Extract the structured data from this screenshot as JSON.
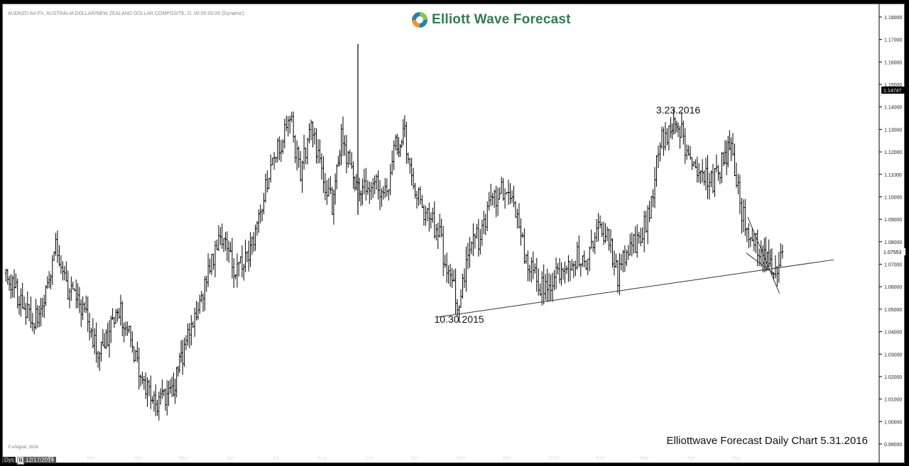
{
  "header": {
    "symbol_line": "AUDNZD A0-FX, AUSTRALIA DOLLAR/NEW ZEALAND DOLLAR COMPOSITE, D, 00:00-00:00 (Dynamic)",
    "brand": "Elliott Wave Forecast",
    "copyright": "© eSignal, 2016"
  },
  "footer": {
    "caption": "Elliottwave Forecast Daily Chart 5.31.2016",
    "interval_button": "Dys",
    "interval_n": "N",
    "cursor_date": "12/17/2014"
  },
  "colors": {
    "brand_green": "#2e7d4f",
    "bars": "#000000",
    "background": "#ffffff",
    "frame": "#000000"
  },
  "chart_data": {
    "type": "ohlc",
    "title": "",
    "xlabel": "",
    "ylabel": "",
    "ylim": [
      0.99,
      1.18
    ],
    "yticks": [
      "1.18000",
      "1.17000",
      "1.16000",
      "1.15000",
      "1.14000",
      "1.13000",
      "1.12000",
      "1.11000",
      "1.10000",
      "1.09000",
      "1.08000",
      "1.07000",
      "1.06000",
      "1.05000",
      "1.04000",
      "1.03000",
      "1.02000",
      "1.01000",
      "1.00000",
      "0.99000"
    ],
    "last_price": "1.07553",
    "marker_price": "1.14747",
    "months": [
      "Feb",
      "Mar",
      "Apr",
      "May",
      "Jun",
      "Jul",
      "Aug",
      "Sep",
      "Oct",
      "Nov",
      "Dec",
      "2016",
      "Feb",
      "Mar",
      "Apr",
      "May"
    ],
    "price_path": [
      {
        "date": "2015-01-02",
        "close": 1.066
      },
      {
        "date": "2015-01-14",
        "close": 1.052
      },
      {
        "date": "2015-01-24",
        "close": 1.045
      },
      {
        "date": "2015-02-05",
        "close": 1.076
      },
      {
        "date": "2015-02-12",
        "close": 1.06
      },
      {
        "date": "2015-02-24",
        "close": 1.048
      },
      {
        "date": "2015-03-05",
        "close": 1.03
      },
      {
        "date": "2015-03-20",
        "close": 1.049
      },
      {
        "date": "2015-03-31",
        "close": 1.026
      },
      {
        "date": "2015-04-10",
        "close": 1.007
      },
      {
        "date": "2015-04-24",
        "close": 1.015
      },
      {
        "date": "2015-04-30",
        "close": 1.03
      },
      {
        "date": "2015-05-08",
        "close": 1.048
      },
      {
        "date": "2015-05-18",
        "close": 1.068
      },
      {
        "date": "2015-05-25",
        "close": 1.083
      },
      {
        "date": "2015-06-04",
        "close": 1.068
      },
      {
        "date": "2015-06-16",
        "close": 1.08
      },
      {
        "date": "2015-06-25",
        "close": 1.108
      },
      {
        "date": "2015-07-03",
        "close": 1.123
      },
      {
        "date": "2015-07-10",
        "close": 1.136
      },
      {
        "date": "2015-07-17",
        "close": 1.108
      },
      {
        "date": "2015-07-24",
        "close": 1.134
      },
      {
        "date": "2015-07-31",
        "close": 1.11
      },
      {
        "date": "2015-08-07",
        "close": 1.097
      },
      {
        "date": "2015-08-13",
        "close": 1.127
      },
      {
        "date": "2015-08-21",
        "close": 1.11
      },
      {
        "date": "2015-08-27",
        "close": 1.101
      },
      {
        "date": "2015-09-03",
        "close": 1.109
      },
      {
        "date": "2015-09-11",
        "close": 1.1
      },
      {
        "date": "2015-09-18",
        "close": 1.122
      },
      {
        "date": "2015-09-24",
        "close": 1.127
      },
      {
        "date": "2015-10-02",
        "close": 1.101
      },
      {
        "date": "2015-10-09",
        "close": 1.091
      },
      {
        "date": "2015-10-16",
        "close": 1.085
      },
      {
        "date": "2015-10-23",
        "close": 1.065
      },
      {
        "date": "2015-10-30",
        "close": 1.052
      },
      {
        "date": "2015-11-06",
        "close": 1.08
      },
      {
        "date": "2015-11-13",
        "close": 1.082
      },
      {
        "date": "2015-11-20",
        "close": 1.098
      },
      {
        "date": "2015-11-27",
        "close": 1.104
      },
      {
        "date": "2015-12-04",
        "close": 1.098
      },
      {
        "date": "2015-12-11",
        "close": 1.078
      },
      {
        "date": "2015-12-18",
        "close": 1.064
      },
      {
        "date": "2015-12-25",
        "close": 1.06
      },
      {
        "date": "2016-01-01",
        "close": 1.063
      },
      {
        "date": "2016-01-08",
        "close": 1.07
      },
      {
        "date": "2016-01-15",
        "close": 1.073
      },
      {
        "date": "2016-01-22",
        "close": 1.072
      },
      {
        "date": "2016-01-29",
        "close": 1.086
      },
      {
        "date": "2016-02-05",
        "close": 1.082
      },
      {
        "date": "2016-02-12",
        "close": 1.064
      },
      {
        "date": "2016-02-19",
        "close": 1.077
      },
      {
        "date": "2016-02-26",
        "close": 1.08
      },
      {
        "date": "2016-03-04",
        "close": 1.093
      },
      {
        "date": "2016-03-11",
        "close": 1.125
      },
      {
        "date": "2016-03-18",
        "close": 1.128
      },
      {
        "date": "2016-03-23",
        "close": 1.133
      },
      {
        "date": "2016-03-31",
        "close": 1.115
      },
      {
        "date": "2016-04-08",
        "close": 1.11
      },
      {
        "date": "2016-04-15",
        "close": 1.107
      },
      {
        "date": "2016-04-22",
        "close": 1.116
      },
      {
        "date": "2016-04-27",
        "close": 1.123
      },
      {
        "date": "2016-05-04",
        "close": 1.094
      },
      {
        "date": "2016-05-11",
        "close": 1.082
      },
      {
        "date": "2016-05-18",
        "close": 1.075
      },
      {
        "date": "2016-05-24",
        "close": 1.066
      },
      {
        "date": "2016-05-31",
        "close": 1.0755
      }
    ],
    "spike": {
      "date": "2015-08-24",
      "high": 1.168
    },
    "trendline": {
      "from": {
        "date": "2015-10-16",
        "price": 1.0465
      },
      "to": {
        "date": "2016-07-04",
        "price": 1.072
      }
    },
    "wedge_lines": [
      {
        "from": {
          "date": "2016-05-08",
          "price": 1.091
        },
        "to": {
          "date": "2016-05-29",
          "price": 1.057
        }
      },
      {
        "from": {
          "date": "2016-05-07",
          "price": 1.075
        },
        "to": {
          "date": "2016-05-27",
          "price": 1.065
        }
      }
    ],
    "annotations": [
      {
        "text": "3.23.2016",
        "date": "2016-03-23",
        "price": 1.137
      },
      {
        "text": "10.30.2015",
        "date": "2015-10-30",
        "price": 1.044
      }
    ]
  }
}
